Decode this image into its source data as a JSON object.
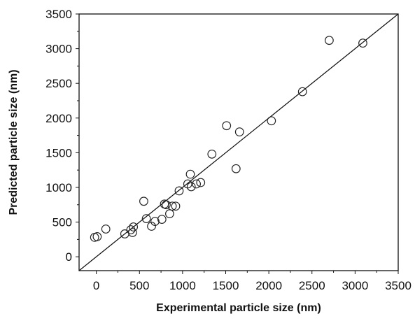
{
  "chart_data": {
    "type": "scatter",
    "title": "",
    "xlabel": "Experimental particle size (nm)",
    "ylabel": "Predicted particle size (nm)",
    "xlim": [
      -200,
      3500
    ],
    "ylim": [
      -200,
      3500
    ],
    "x_ticks": [
      0,
      500,
      1000,
      1500,
      2000,
      2500,
      3000,
      3500
    ],
    "y_ticks": [
      0,
      500,
      1000,
      1500,
      2000,
      2500,
      3000,
      3500
    ],
    "x_tick_labels": [
      "0",
      "500",
      "1000",
      "1500",
      "2000",
      "2500",
      "3000",
      "3500"
    ],
    "y_tick_labels": [
      "0",
      "500",
      "1000",
      "1500",
      "2000",
      "2500",
      "3000",
      "3500"
    ],
    "grid": false,
    "legend": "none",
    "reference_line": {
      "type": "y=x",
      "from": [
        -200,
        -200
      ],
      "to": [
        3500,
        3500
      ]
    },
    "series": [
      {
        "marker": "open-circle",
        "color": "#222222",
        "points": [
          {
            "x": -20,
            "y": 280
          },
          {
            "x": 10,
            "y": 290
          },
          {
            "x": 110,
            "y": 400
          },
          {
            "x": 330,
            "y": 330
          },
          {
            "x": 400,
            "y": 390
          },
          {
            "x": 430,
            "y": 430
          },
          {
            "x": 420,
            "y": 350
          },
          {
            "x": 550,
            "y": 800
          },
          {
            "x": 580,
            "y": 550
          },
          {
            "x": 640,
            "y": 440
          },
          {
            "x": 680,
            "y": 510
          },
          {
            "x": 760,
            "y": 540
          },
          {
            "x": 790,
            "y": 760
          },
          {
            "x": 810,
            "y": 750
          },
          {
            "x": 850,
            "y": 620
          },
          {
            "x": 880,
            "y": 730
          },
          {
            "x": 920,
            "y": 730
          },
          {
            "x": 960,
            "y": 950
          },
          {
            "x": 1060,
            "y": 1050
          },
          {
            "x": 1090,
            "y": 1190
          },
          {
            "x": 1100,
            "y": 1010
          },
          {
            "x": 1160,
            "y": 1050
          },
          {
            "x": 1210,
            "y": 1070
          },
          {
            "x": 1340,
            "y": 1480
          },
          {
            "x": 1510,
            "y": 1890
          },
          {
            "x": 1620,
            "y": 1270
          },
          {
            "x": 1660,
            "y": 1800
          },
          {
            "x": 2030,
            "y": 1960
          },
          {
            "x": 2390,
            "y": 2380
          },
          {
            "x": 2700,
            "y": 3120
          },
          {
            "x": 3090,
            "y": 3080
          }
        ]
      }
    ]
  }
}
